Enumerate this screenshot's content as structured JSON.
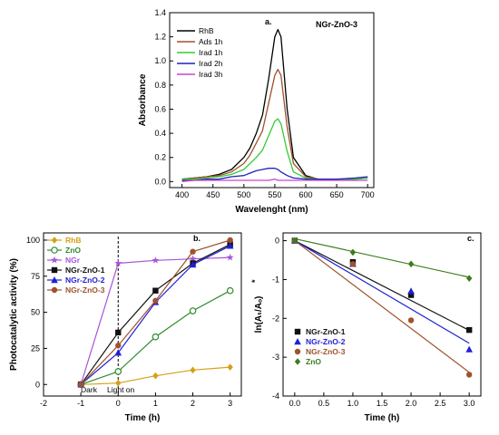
{
  "colors": {
    "RhB": "#000000",
    "Ads 1h": "#a0522d",
    "Irad 1h": "#33cc33",
    "Irad 2h": "#2222bb",
    "Irad 3h": "#cc44cc",
    "RhB_b": "#d4a017",
    "ZnO_b": "#2e8b2e",
    "NGr_b": "#a855d8",
    "NGr-ZnO-1_b": "#111111",
    "NGr-ZnO-2_b": "#1f1fd6",
    "NGr-ZnO-3_b": "#a0522d",
    "ZnO_c": "#3a7d1a"
  },
  "chart_data": [
    {
      "id": "a",
      "type": "line",
      "panel_label": "a.",
      "annotation": "NGr-ZnO-3",
      "xlabel": "Wavelenght  (nm)",
      "ylabel": "Absorbance",
      "xlim": [
        380,
        710
      ],
      "ylim": [
        -0.05,
        1.4
      ],
      "xticks": [
        "400",
        "450",
        "500",
        "550",
        "600",
        "650",
        "700"
      ],
      "yticks": [
        "0.0",
        "0.2",
        "0.4",
        "0.6",
        "0.8",
        "1.0",
        "1.2",
        "1.4"
      ],
      "legend_position": "top-left",
      "x": [
        400,
        420,
        440,
        460,
        480,
        500,
        510,
        520,
        530,
        540,
        550,
        555,
        560,
        570,
        580,
        600,
        620,
        650,
        680,
        700
      ],
      "series": [
        {
          "name": "RhB",
          "values": [
            0.02,
            0.03,
            0.04,
            0.06,
            0.1,
            0.2,
            0.28,
            0.4,
            0.55,
            0.85,
            1.2,
            1.26,
            1.2,
            0.6,
            0.2,
            0.05,
            0.02,
            0.02,
            0.02,
            0.03
          ]
        },
        {
          "name": "Ads 1h",
          "values": [
            0.02,
            0.03,
            0.04,
            0.05,
            0.08,
            0.15,
            0.22,
            0.32,
            0.42,
            0.65,
            0.88,
            0.93,
            0.88,
            0.45,
            0.15,
            0.04,
            0.02,
            0.02,
            0.02,
            0.03
          ]
        },
        {
          "name": "Irad 1h",
          "values": [
            0.02,
            0.02,
            0.03,
            0.04,
            0.06,
            0.1,
            0.15,
            0.2,
            0.26,
            0.38,
            0.5,
            0.52,
            0.48,
            0.25,
            0.08,
            0.03,
            0.02,
            0.02,
            0.02,
            0.03
          ]
        },
        {
          "name": "Irad 2h",
          "values": [
            0.01,
            0.01,
            0.02,
            0.02,
            0.04,
            0.05,
            0.07,
            0.09,
            0.1,
            0.11,
            0.11,
            0.1,
            0.08,
            0.05,
            0.03,
            0.02,
            0.02,
            0.02,
            0.03,
            0.04
          ]
        },
        {
          "name": "Irad 3h",
          "values": [
            0.0,
            0.01,
            0.01,
            0.01,
            0.01,
            0.01,
            0.01,
            0.01,
            0.01,
            0.01,
            0.02,
            0.01,
            0.01,
            0.01,
            0.01,
            0.01,
            0.01,
            0.01,
            0.01,
            0.01
          ]
        }
      ]
    },
    {
      "id": "b",
      "type": "line",
      "panel_label": "b.",
      "xlabel": "Time (h)",
      "ylabel": "Photocatalytic activity  (%)",
      "xlim": [
        -2,
        3.3
      ],
      "ylim": [
        -8,
        105
      ],
      "xticks": [
        "-2",
        "-1",
        "0",
        "1",
        "2",
        "3"
      ],
      "yticks": [
        "0",
        "25",
        "50",
        "75",
        "100"
      ],
      "legend_position": "top-left",
      "annotations": [
        "Dark",
        "Light on"
      ],
      "light_on_x": 0,
      "x": [
        -1,
        0,
        1,
        2,
        3
      ],
      "series": [
        {
          "name": "RhB",
          "marker": "diamond",
          "values": [
            0,
            1,
            6,
            10,
            12
          ]
        },
        {
          "name": "ZnO",
          "marker": "circle-open",
          "values": [
            0,
            9,
            33,
            51,
            65
          ]
        },
        {
          "name": "NGr",
          "marker": "star",
          "values": [
            0,
            84,
            86,
            87,
            88
          ]
        },
        {
          "name": "NGr-ZnO-1",
          "marker": "square",
          "values": [
            0,
            36,
            65,
            84,
            97
          ]
        },
        {
          "name": "NGr-ZnO-2",
          "marker": "triangle",
          "values": [
            0,
            22,
            57,
            83,
            96
          ]
        },
        {
          "name": "NGr-ZnO-3",
          "marker": "circle",
          "values": [
            0,
            27,
            58,
            92,
            100
          ]
        }
      ]
    },
    {
      "id": "c",
      "type": "scatter",
      "panel_label": "c.",
      "xlabel": "Time  (h)",
      "ylabel": "ln(Aₜ/Aₒ)",
      "ylabel_superscript": "*",
      "xlim": [
        -0.2,
        3.2
      ],
      "ylim": [
        -4,
        0.2
      ],
      "xticks": [
        "0.0",
        "0.5",
        "1.0",
        "1.5",
        "2.0",
        "2.5",
        "3.0"
      ],
      "yticks": [
        "0",
        "-1",
        "-2",
        "-3",
        "-4"
      ],
      "legend_position": "bottom-left",
      "series": [
        {
          "name": "NGr-ZnO-1",
          "marker": "square",
          "x": [
            0,
            1,
            2,
            3
          ],
          "values": [
            0,
            -0.55,
            -1.4,
            -2.3
          ],
          "fit": [
            0,
            -0.77
          ]
        },
        {
          "name": "NGr-ZnO-2",
          "marker": "triangle",
          "x": [
            0,
            1,
            2,
            3
          ],
          "values": [
            0,
            -0.6,
            -1.3,
            -2.8
          ],
          "fit": [
            0,
            -0.88
          ]
        },
        {
          "name": "NGr-ZnO-3",
          "marker": "circle",
          "x": [
            0,
            1,
            2,
            3
          ],
          "values": [
            0,
            -0.6,
            -2.05,
            -3.45
          ],
          "fit": [
            0,
            -1.13
          ]
        },
        {
          "name": "ZnO",
          "marker": "diamond",
          "x": [
            0,
            1,
            2,
            3
          ],
          "values": [
            0,
            -0.3,
            -0.6,
            -0.97
          ],
          "fit": [
            0.05,
            -0.33
          ]
        }
      ]
    }
  ]
}
